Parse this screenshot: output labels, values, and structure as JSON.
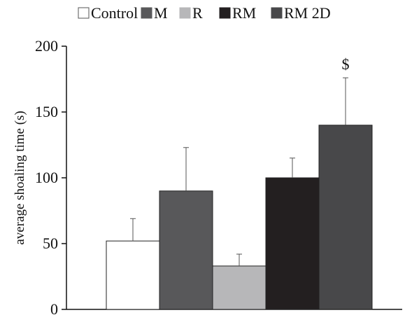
{
  "chart_data": {
    "type": "bar",
    "categories": [
      "Control",
      "M",
      "R",
      "RM",
      "RM 2D"
    ],
    "values": [
      52,
      90,
      33,
      100,
      140
    ],
    "errors": [
      17,
      33,
      9,
      15,
      36
    ],
    "colors": [
      "#ffffff",
      "#58585a",
      "#b7b7b9",
      "#231f20",
      "#48484a"
    ],
    "xlabel": "",
    "ylabel": "average shoaling time (s)",
    "ylim": [
      0,
      200
    ],
    "yticks": [
      0,
      50,
      100,
      150,
      200
    ],
    "annotations": [
      {
        "category": "RM 2D",
        "text": "$"
      }
    ],
    "legend": {
      "position": "top",
      "entries": [
        "Control",
        "M",
        "R",
        "RM",
        "RM 2D"
      ]
    },
    "grid": false
  }
}
